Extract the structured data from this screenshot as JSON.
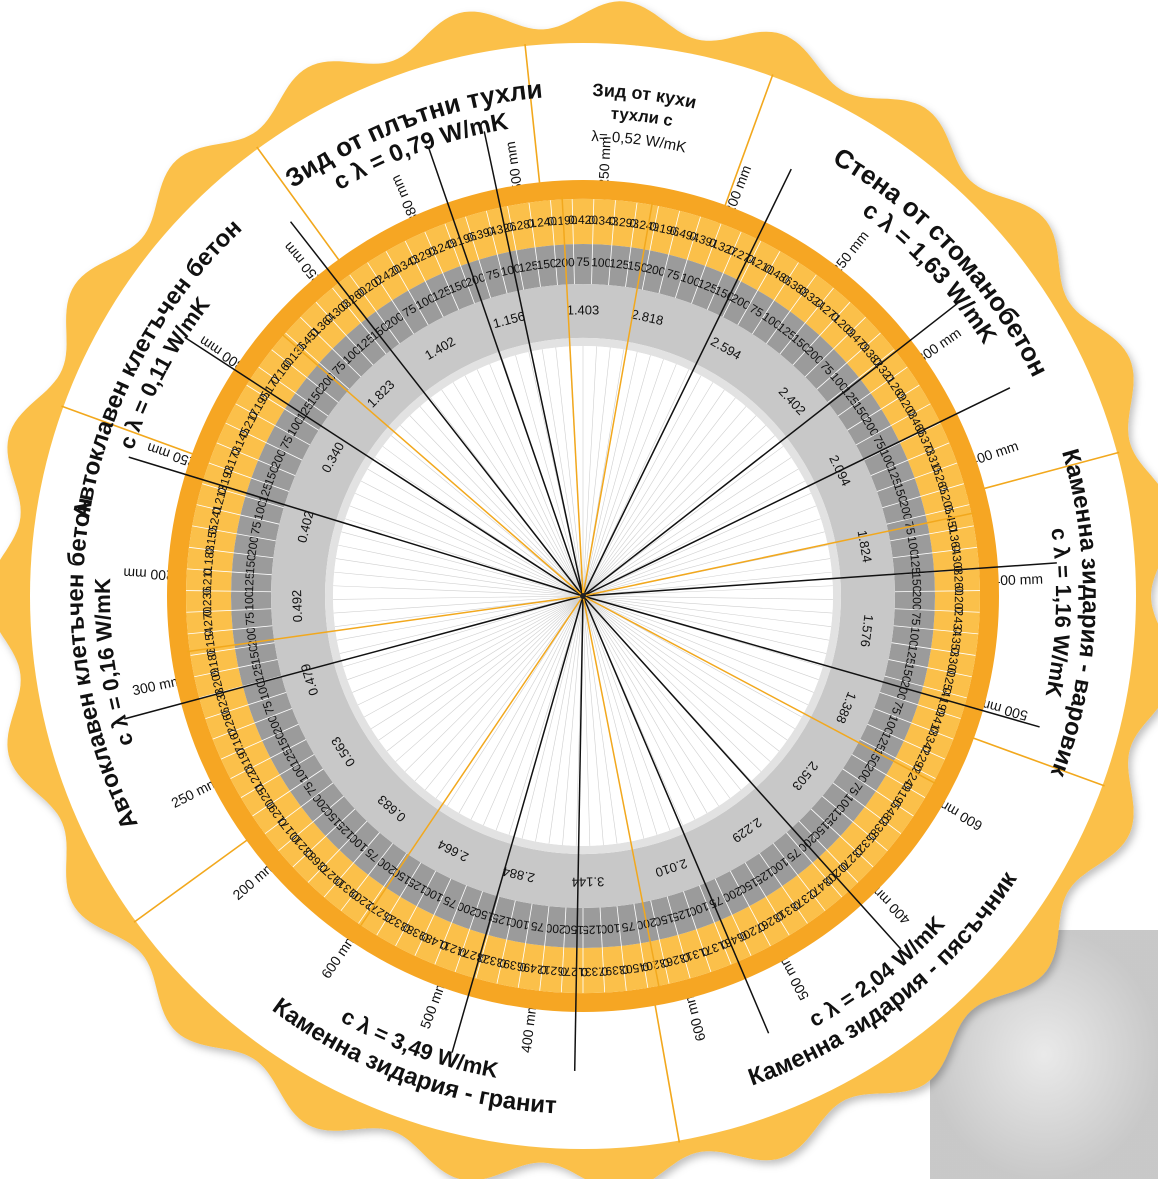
{
  "colors": {
    "accent_orange": "#f6a623",
    "orange_light": "#fbc04a",
    "ring_grey_dark": "#9b9b9b",
    "ring_grey_mid": "#c8c8c8",
    "ring_grey_light": "#e2e2e2",
    "divider_orange": "#f2a81d"
  },
  "sectors": [
    {
      "id": "clay-hollow",
      "title": "Зид от кухи",
      "subtitle": "тухли с",
      "lambda": "λ= 0,52 W/mK"
    },
    {
      "id": "reinforced-concrete",
      "title": "Стена от стоманобетон",
      "subtitle": "с λ = 1,63 W/mK"
    },
    {
      "id": "limestone",
      "title": "Каменна зидария - варовик",
      "subtitle": "с λ = 1,16 W/mK"
    },
    {
      "id": "sandstone",
      "title": "Каменна зидария - пясъчник",
      "subtitle": "с λ = 2,04 W/mK"
    },
    {
      "id": "granite",
      "title": "Каменна зидария - гранит",
      "subtitle": "с λ = 3,49 W/mK"
    },
    {
      "id": "aerated-016",
      "title": "Автоклавен клетъчен бетон",
      "subtitle": "с λ = 0,16 W/mK"
    },
    {
      "id": "aerated-011",
      "title": "Автоклавен клетъчен бетон",
      "subtitle": "с λ = 0,11 W/mK"
    },
    {
      "id": "solid-brick",
      "title": "Зид от плътни тухли",
      "subtitle": "с λ = 0,79 W/mK"
    }
  ],
  "thickness_labels": [
    {
      "text": "250 mm",
      "angle": 3
    },
    {
      "text": "200 mm",
      "angle": 21
    },
    {
      "text": "250 mm",
      "angle": 38
    },
    {
      "text": "300 mm",
      "angle": 55
    },
    {
      "text": "400 mm",
      "angle": 71
    },
    {
      "text": "400 mm",
      "angle": 88
    },
    {
      "text": "500 mm",
      "angle": 105
    },
    {
      "text": "600 mm",
      "angle": 120
    },
    {
      "text": "400 mm",
      "angle": 135
    },
    {
      "text": "500 mm",
      "angle": 151
    },
    {
      "text": "600 mm",
      "angle": 165
    },
    {
      "text": "400 mm",
      "angle": 187
    },
    {
      "text": "500 mm",
      "angle": 200
    },
    {
      "text": "600 mm",
      "angle": 214
    },
    {
      "text": "200 mm",
      "angle": 229
    },
    {
      "text": "250 mm",
      "angle": 243
    },
    {
      "text": "300 mm",
      "angle": 258
    },
    {
      "text": "200 mm",
      "angle": 273
    },
    {
      "text": "250 mm",
      "angle": 289
    },
    {
      "text": "300 mm",
      "angle": 304
    },
    {
      "text": "250 mm",
      "angle": 320
    },
    {
      "text": "380 mm",
      "angle": 336
    },
    {
      "text": "500 mm",
      "angle": 351
    }
  ],
  "resistance_values": [
    {
      "text": "1.403",
      "angle": 0
    },
    {
      "text": "2.818",
      "angle": 13
    },
    {
      "text": "2.594",
      "angle": 30
    },
    {
      "text": "2.402",
      "angle": 47
    },
    {
      "text": "2.094",
      "angle": 64
    },
    {
      "text": "1.824",
      "angle": 80
    },
    {
      "text": "1.576",
      "angle": 97
    },
    {
      "text": "1.388",
      "angle": 113
    },
    {
      "text": "2.503",
      "angle": 129
    },
    {
      "text": "2.229",
      "angle": 145
    },
    {
      "text": "2.010",
      "angle": 162
    },
    {
      "text": "3.144",
      "angle": 179
    },
    {
      "text": "2.884",
      "angle": 193
    },
    {
      "text": "2.664",
      "angle": 207
    },
    {
      "text": "0.683",
      "angle": 222
    },
    {
      "text": "0.563",
      "angle": 237
    },
    {
      "text": "0.479",
      "angle": 253
    },
    {
      "text": "0.492",
      "angle": 268
    },
    {
      "text": "0.402",
      "angle": 284
    },
    {
      "text": "0.340",
      "angle": 299
    },
    {
      "text": "1.823",
      "angle": 315
    },
    {
      "text": "1.402",
      "angle": 330
    },
    {
      "text": "1.156",
      "angle": 345
    }
  ],
  "insulation_cycle": [
    "75",
    "100",
    "125",
    "150",
    "200"
  ],
  "u_values_outer": [
    "0.420",
    "0.343",
    "0.293",
    "0.249",
    "0.196",
    "0.494",
    "0.391",
    "0.327",
    "0.274",
    "0.210",
    "0.486",
    "0.388",
    "0.324",
    "0.271",
    "0.209",
    "0.479",
    "0.382",
    "0.321",
    "0.269",
    "0.208",
    "0.466",
    "0.373",
    "0.315",
    "0.265",
    "0.205",
    "0.451",
    "0.364",
    "0.308",
    "0.260",
    "0.202",
    "0.434",
    "0.353",
    "0.300",
    "0.254",
    "0.199",
    "0.418",
    "0.342",
    "0.292",
    "0.249",
    "0.195",
    "0.483",
    "0.385",
    "0.323",
    "0.270",
    "0.208",
    "0.472",
    "0.378",
    "0.318",
    "0.267",
    "0.206",
    "0.461",
    "0.371",
    "0.313",
    "0.263",
    "0.204",
    "0.503",
    "0.397",
    "0.331",
    "0.276",
    "0.212",
    "0.496",
    "0.393",
    "0.328",
    "0.274",
    "0.211",
    "0.489",
    "0.388",
    "0.325",
    "0.272",
    "0.209",
    "0.319",
    "0.273",
    "0.683",
    "0.210",
    "0.171",
    "0.290",
    "0.251",
    "0.223",
    "0.197",
    "0.162",
    "0.266",
    "0.233",
    "0.209",
    "0.186",
    "0.154",
    "0.270",
    "0.236",
    "0.211",
    "0.188",
    "0.155",
    "0.241",
    "0.213",
    "0.193",
    "0.173",
    "0.145",
    "0.217",
    "0.195",
    "0.177",
    "0.160",
    "0.136",
    "0.451",
    "0.364",
    "0.308",
    "0.260",
    "0.202",
    "0.420",
    "0.343",
    "0.293",
    "0.249",
    "0.196",
    "0.394",
    "0.326",
    "0.281",
    "0.240",
    "0.190"
  ]
}
